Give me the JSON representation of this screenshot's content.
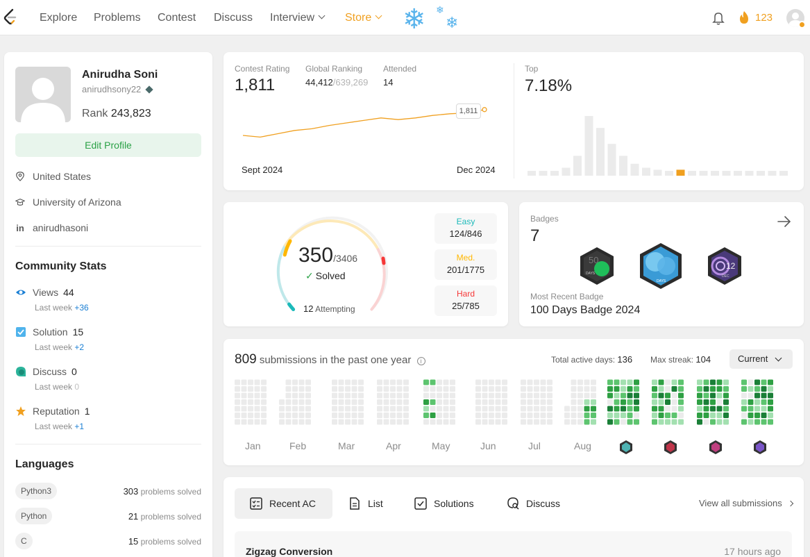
{
  "nav": {
    "items": [
      "Explore",
      "Problems",
      "Contest",
      "Discuss",
      "Interview",
      "Store"
    ],
    "streak": "123"
  },
  "profile": {
    "name": "Anirudha Soni",
    "username": "anirudhsony22",
    "rank_label": "Rank",
    "rank": "243,823",
    "edit_label": "Edit Profile",
    "location": "United States",
    "school": "University of Arizona",
    "linkedin": "anirudhasoni"
  },
  "community": {
    "title": "Community Stats",
    "last_week": "Last week",
    "views": {
      "label": "Views",
      "value": "44",
      "delta": "+36"
    },
    "solution": {
      "label": "Solution",
      "value": "15",
      "delta": "+2"
    },
    "discuss": {
      "label": "Discuss",
      "value": "0",
      "delta": "0"
    },
    "reputation": {
      "label": "Reputation",
      "value": "1",
      "delta": "+1"
    }
  },
  "languages": {
    "title": "Languages",
    "suffix": "problems solved",
    "items": [
      {
        "name": "Python3",
        "count": "303"
      },
      {
        "name": "Python",
        "count": "21"
      },
      {
        "name": "C",
        "count": "15"
      }
    ]
  },
  "contest": {
    "rating_label": "Contest Rating",
    "rating": "1,811",
    "global_label": "Global Ranking",
    "global_rank": "44,412",
    "global_total": "/639,269",
    "attended_label": "Attended",
    "attended": "14",
    "tooltip": "1,811",
    "start_label": "Sept 2024",
    "end_label": "Dec 2024",
    "top_label": "Top",
    "top_value": "7.18%",
    "rating_history": [
      1780,
      1778,
      1782,
      1786,
      1788,
      1792,
      1795,
      1798,
      1801,
      1799,
      1801,
      1804,
      1806,
      1807,
      1811
    ],
    "distribution": [
      1,
      1,
      1,
      2,
      5,
      15,
      12,
      8,
      5,
      3,
      2,
      1.5,
      1,
      1.5,
      1,
      1,
      1,
      1,
      1,
      1,
      1,
      1,
      1
    ],
    "highlight_index": 13,
    "accent": "#f0a020"
  },
  "solved": {
    "count": "350",
    "total": "/3406",
    "solved_label": "Solved",
    "attempting_count": "12",
    "attempting_label": "Attempting",
    "easy": {
      "label": "Easy",
      "value": "124/846",
      "color": "#1cbaba"
    },
    "medium": {
      "label": "Med.",
      "value": "201/1775",
      "color": "#ffb700"
    },
    "hard": {
      "label": "Hard",
      "value": "25/785",
      "color": "#f63737"
    }
  },
  "badges": {
    "label": "Badges",
    "count": "7",
    "recent_label": "Most Recent Badge",
    "recent_name": "100 Days Badge 2024",
    "badge_texts": [
      "50",
      "DAYS",
      "DAYS",
      "12",
      "DEC"
    ]
  },
  "submissions": {
    "count": "809",
    "text": "submissions in the past one year",
    "active_label": "Total active days:",
    "active_value": "136",
    "streak_label": "Max streak:",
    "streak_value": "104",
    "select": "Current",
    "months": [
      "Jan",
      "Feb",
      "Mar",
      "Apr",
      "May",
      "Jun",
      "Jul",
      "Aug"
    ]
  },
  "recent": {
    "tabs": [
      "Recent AC",
      "List",
      "Solutions",
      "Discuss"
    ],
    "view_all": "View all submissions",
    "items": [
      {
        "title": "Zigzag Conversion",
        "time": "17 hours ago"
      }
    ]
  }
}
